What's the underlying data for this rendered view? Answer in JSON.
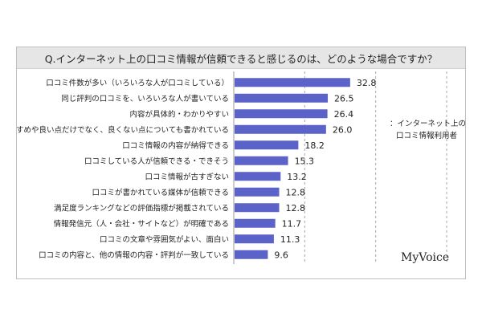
{
  "chart_data": {
    "type": "bar",
    "orientation": "horizontal",
    "title": "Q.インターネット上の口コミ情報が信頼できると感じるのは、どのような場合ですか？",
    "categories": [
      "口コミ件数が多い（いろいろな人が口コミしている）",
      "同じ評判の口コミを、いろいろな人が書いている",
      "内容が具体的・わかりやすい",
      "おすすめや良い点だけでなく、良くない点についても書かれている",
      "口コミ情報の内容が納得できる",
      "口コミしている人が信頼できる・できそう",
      "口コミ情報が古すぎない",
      "口コミが書かれている媒体が信頼できる",
      "満足度ランキングなどの評価指標が掲載されている",
      "情報発信元（人・会社・サイトなど）が明確である",
      "口コミの文章や雰囲気がよい、面白い",
      "口コミの内容と、他の情報の内容・評判が一致している"
    ],
    "values": [
      32.8,
      26.5,
      26.4,
      26.0,
      18.2,
      15.3,
      13.2,
      12.8,
      12.8,
      11.7,
      11.3,
      9.6
    ],
    "value_labels": [
      "32.8",
      "26.5",
      "26.4",
      "26.0",
      "18.2",
      "15.3",
      "13.2",
      "12.8",
      "12.8",
      "11.7",
      "11.3",
      "9.6"
    ],
    "xlim": [
      0,
      60
    ],
    "gridlines": [
      20,
      40,
      60
    ],
    "grid": true,
    "bar_color": "#5b63c9",
    "legend_lines": [
      "：インターネット上の",
      "口コミ情報利用者"
    ],
    "legend_placement": "right",
    "brand": "MyVoice"
  }
}
